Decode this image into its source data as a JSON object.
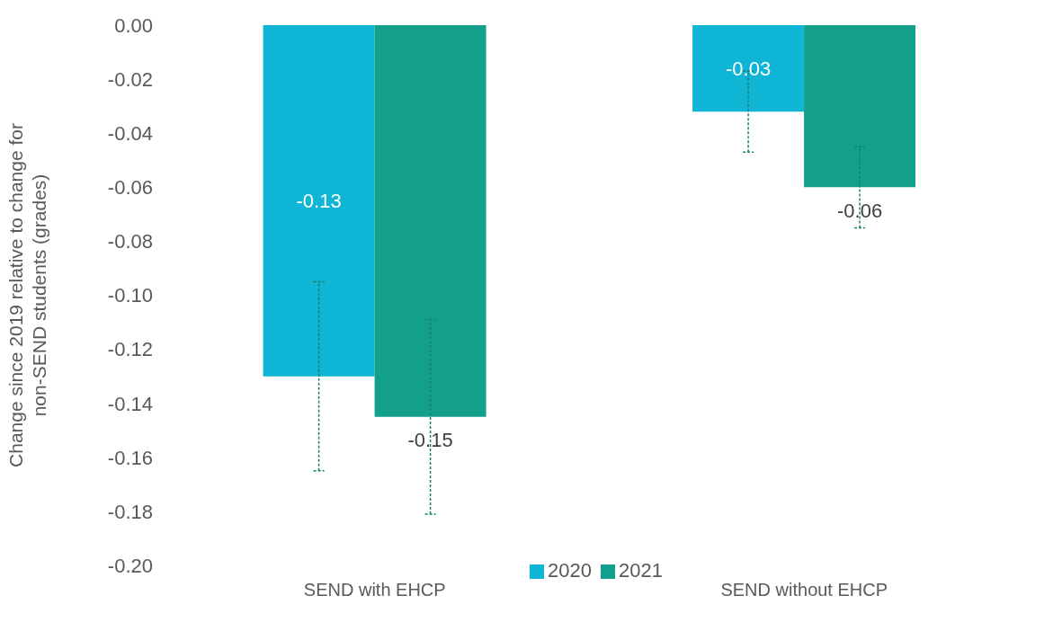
{
  "chart_data": {
    "type": "bar",
    "ylabel": "Change since 2019 relative to change for non-SEND students (grades)",
    "categories": [
      "SEND with EHCP",
      "SEND without EHCP"
    ],
    "series": [
      {
        "name": "2020",
        "color": "#0fb5d4",
        "values": [
          -0.13,
          -0.032
        ],
        "errors": [
          0.035,
          0.015
        ],
        "value_labels": [
          "-0.13",
          "-0.03"
        ]
      },
      {
        "name": "2021",
        "color": "#12a08a",
        "values": [
          -0.145,
          -0.06
        ],
        "errors": [
          0.036,
          0.015
        ],
        "value_labels": [
          "-0.15",
          "-0.06"
        ]
      }
    ],
    "ylim": [
      -0.2,
      0
    ],
    "yticks": [
      {
        "value": -0.2,
        "label": "-0.20"
      },
      {
        "value": -0.18,
        "label": "-0.18"
      },
      {
        "value": -0.16,
        "label": "-0.16"
      },
      {
        "value": -0.14,
        "label": "-0.14"
      },
      {
        "value": -0.12,
        "label": "-0.12"
      },
      {
        "value": -0.1,
        "label": "-0.10"
      },
      {
        "value": -0.08,
        "label": "-0.08"
      },
      {
        "value": -0.06,
        "label": "-0.06"
      },
      {
        "value": -0.04,
        "label": "-0.04"
      },
      {
        "value": -0.02,
        "label": "-0.02"
      },
      {
        "value": 0,
        "label": "0.00"
      }
    ],
    "legend": "bottom"
  }
}
